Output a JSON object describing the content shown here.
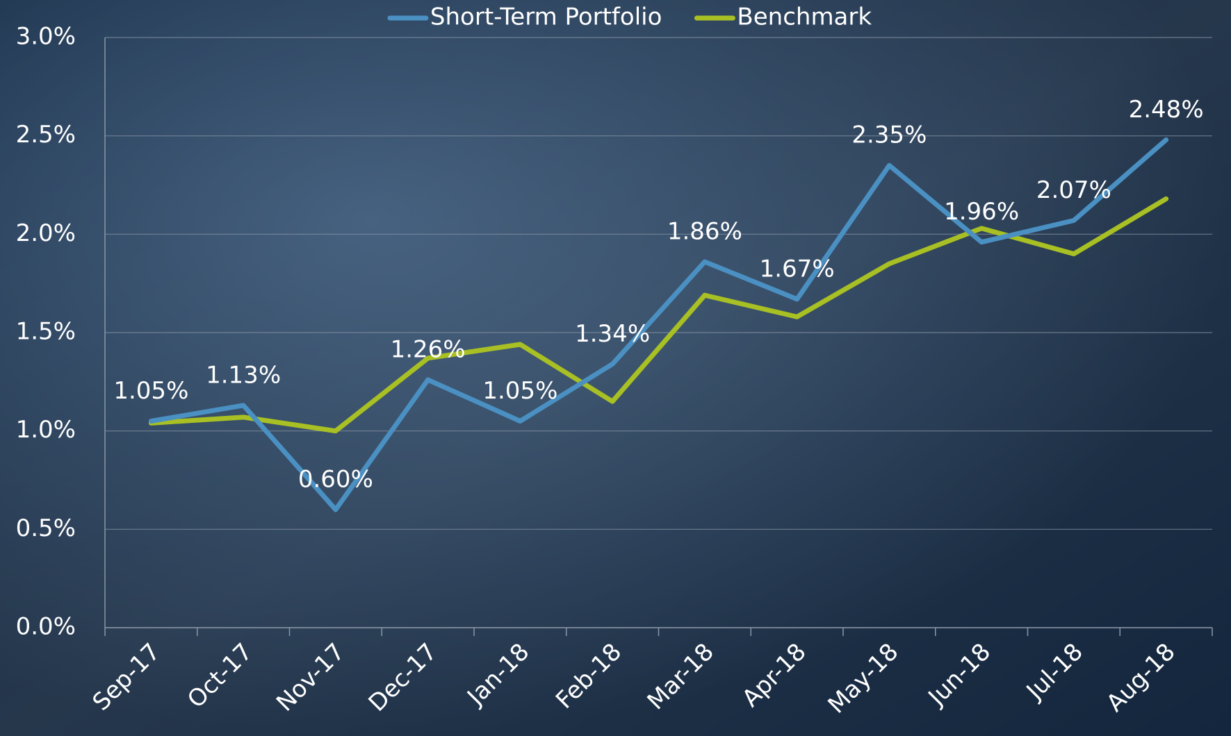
{
  "chart_data": {
    "type": "line",
    "categories": [
      "Sep-17",
      "Oct-17",
      "Nov-17",
      "Dec-17",
      "Jan-18",
      "Feb-18",
      "Mar-18",
      "Apr-18",
      "May-18",
      "Jun-18",
      "Jul-18",
      "Aug-18"
    ],
    "series": [
      {
        "name": "Short-Term Portfolio",
        "color": "#4a90c2",
        "values": [
          1.05,
          1.13,
          0.6,
          1.26,
          1.05,
          1.34,
          1.86,
          1.67,
          2.35,
          1.96,
          2.07,
          2.48
        ],
        "value_labels": [
          "1.05%",
          "1.13%",
          "0.60%",
          "1.26%",
          "1.05%",
          "1.34%",
          "1.86%",
          "1.67%",
          "2.35%",
          "1.96%",
          "2.07%",
          "2.48%"
        ]
      },
      {
        "name": "Benchmark",
        "color": "#a8c023",
        "values": [
          1.04,
          1.07,
          1.0,
          1.37,
          1.44,
          1.15,
          1.69,
          1.58,
          1.85,
          2.03,
          1.9,
          2.18
        ]
      }
    ],
    "ylim": [
      0,
      3
    ],
    "yticks": [
      {
        "value": 0,
        "label": "0.0%"
      },
      {
        "value": 0.5,
        "label": "0.5%"
      },
      {
        "value": 1,
        "label": "1.0%"
      },
      {
        "value": 1.5,
        "label": "1.5%"
      },
      {
        "value": 2,
        "label": "2.0%"
      },
      {
        "value": 2.5,
        "label": "2.5%"
      },
      {
        "value": 3,
        "label": "3.0%"
      }
    ],
    "grid": true,
    "legend": "top"
  }
}
